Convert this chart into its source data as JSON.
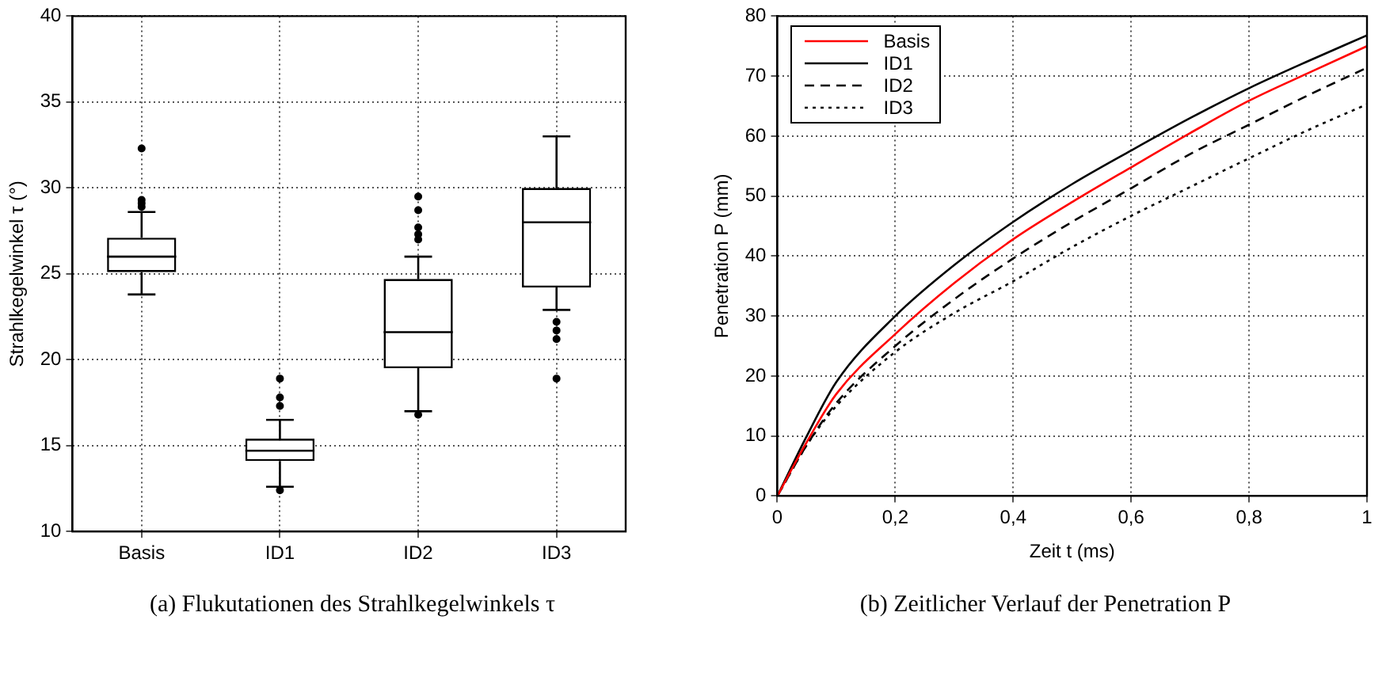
{
  "chart_data": [
    {
      "type": "box",
      "categories": [
        "Basis",
        "ID1",
        "ID2",
        "ID3"
      ],
      "ylabel": "Strahlkegelwinkel τ (°)",
      "ylim": [
        10,
        40
      ],
      "yticks": [
        10,
        15,
        20,
        25,
        30,
        35,
        40
      ],
      "grid": true,
      "color": "#000000",
      "boxes": [
        {
          "low": 23.8,
          "q1": 25.1,
          "median": 26.0,
          "q3": 27.1,
          "high": 28.6,
          "outliers": [
            32.3,
            29.3,
            29.1,
            28.9
          ]
        },
        {
          "low": 12.6,
          "q1": 14.1,
          "median": 14.7,
          "q3": 15.4,
          "high": 16.5,
          "outliers": [
            18.9,
            17.8,
            17.3,
            12.4
          ]
        },
        {
          "low": 17.0,
          "q1": 19.5,
          "median": 21.6,
          "q3": 24.7,
          "high": 26.0,
          "outliers": [
            29.5,
            28.7,
            27.7,
            27.3,
            27.0,
            16.8
          ]
        },
        {
          "low": 22.9,
          "q1": 24.2,
          "median": 28.0,
          "q3": 30.0,
          "high": 33.0,
          "outliers": [
            22.2,
            21.7,
            21.2,
            18.9
          ]
        }
      ],
      "annotations": [
        "(a)  Flukutationen des Strahlkegelwinkels τ"
      ]
    },
    {
      "type": "line",
      "x": [
        0,
        0.05,
        0.1,
        0.2,
        0.3,
        0.4,
        0.5,
        0.6,
        0.7,
        0.8,
        0.9,
        1.0
      ],
      "xlabel": "Zeit t (ms)",
      "ylabel": "Penetration P (mm)",
      "xlim": [
        0,
        1
      ],
      "xticks": [
        0,
        {
          "value": 0.2,
          "label": "0,2"
        },
        {
          "value": 0.4,
          "label": "0,4"
        },
        {
          "value": 0.6,
          "label": "0,6"
        },
        {
          "value": 0.8,
          "label": "0,8"
        },
        1
      ],
      "ylim": [
        0,
        80
      ],
      "yticks": [
        0,
        10,
        20,
        30,
        40,
        50,
        60,
        70,
        80
      ],
      "grid": true,
      "legend": "top left",
      "series": [
        {
          "name": "Basis",
          "color": "#ff0000",
          "line_style": "solid",
          "values": [
            0,
            9,
            17,
            27.0,
            35.5,
            42.8,
            49,
            54.8,
            60.5,
            65.9,
            70.5,
            75.0
          ]
        },
        {
          "name": "ID1",
          "color": "#000000",
          "line_style": "solid",
          "values": [
            0,
            10,
            19,
            30.0,
            38.5,
            45.7,
            52,
            57.6,
            63,
            68.0,
            72.5,
            76.8
          ]
        },
        {
          "name": "ID2",
          "color": "#000000",
          "line_style": "dashed",
          "values": [
            0,
            8.5,
            15.5,
            25.0,
            32.8,
            39.6,
            45.7,
            51.3,
            57,
            61.9,
            66.8,
            71.4
          ]
        },
        {
          "name": "ID3",
          "color": "#000000",
          "line_style": "dotted",
          "values": [
            0,
            8.5,
            15,
            24.0,
            30.5,
            35.8,
            41.5,
            46.7,
            51.5,
            56.3,
            61,
            65.3
          ]
        }
      ],
      "annotations": [
        "(b)  Zeitlicher Verlauf der Penetration P"
      ]
    }
  ]
}
